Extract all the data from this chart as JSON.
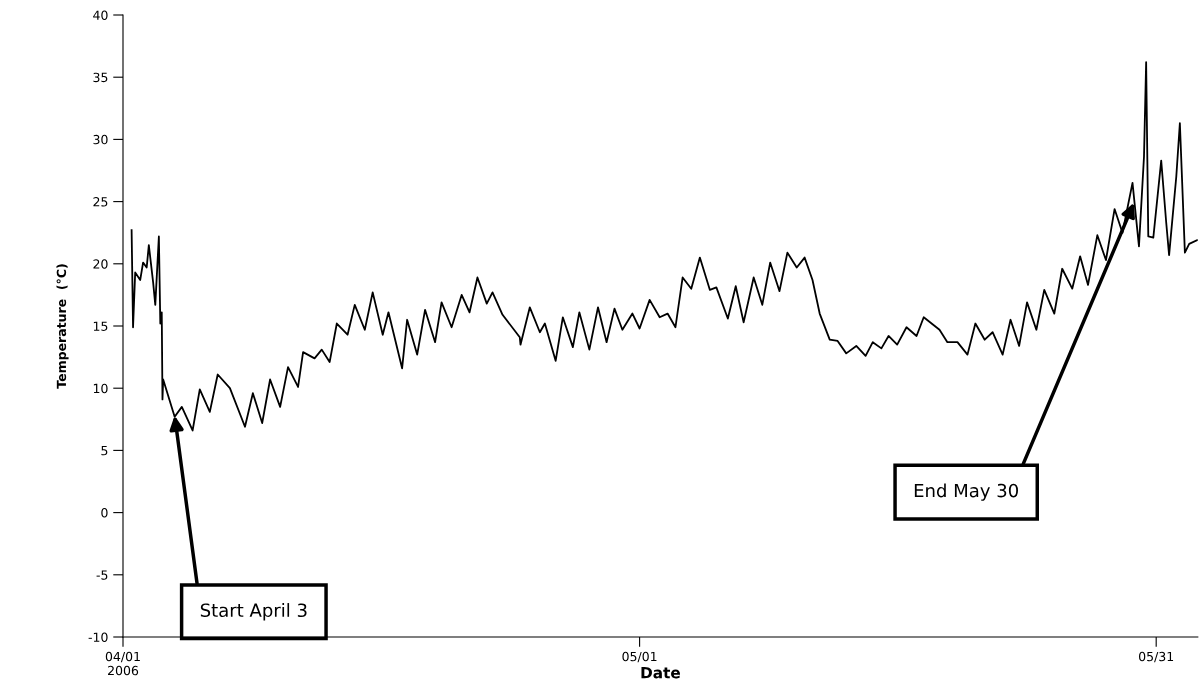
{
  "chart_data": {
    "type": "line",
    "xlabel": "Date",
    "ylabel": "Temperature  (°C)",
    "xlim": [
      "2006-04-01T00:00",
      "2006-06-02T10:00"
    ],
    "xticks": [
      {
        "value": "2006-04-01",
        "label": "04/01\n2006"
      },
      {
        "value": "2006-05-01",
        "label": "05/01"
      },
      {
        "value": "2006-05-31",
        "label": "05/31"
      }
    ],
    "ylim": [
      -10,
      40
    ],
    "yticks": [
      -10,
      -5,
      0,
      5,
      10,
      15,
      20,
      25,
      30,
      35,
      40
    ],
    "grid": false,
    "legend": false,
    "marker": "none",
    "line_style": "solid",
    "annotations": [
      {
        "text": "Start April 3",
        "x": "2006-04-04T00:00",
        "y": 7.8
      },
      {
        "text": "End May 30",
        "x": "2006-05-29T17:00",
        "y": 24.9
      }
    ],
    "series": [
      {
        "color": "#000000",
        "x": [
          "2006-04-01T12:00",
          "2006-04-01T14:00",
          "2006-04-01T17:00",
          "2006-04-02T00:00",
          "2006-04-02T04:00",
          "2006-04-02T09:00",
          "2006-04-02T12:00",
          "2006-04-02T18:00",
          "2006-04-02T21:00",
          "2006-04-03T02:00",
          "2006-04-03T04:00",
          "2006-04-03T06:00",
          "2006-04-03T07:00",
          "2006-04-03T08:00",
          "2006-04-04T00:00",
          "2006-04-04T10:00",
          "2006-04-05T01:00",
          "2006-04-05T11:00",
          "2006-04-06T01:00",
          "2006-04-06T12:00",
          "2006-04-07T05:00",
          "2006-04-08T02:00",
          "2006-04-08T13:00",
          "2006-04-09T02:00",
          "2006-04-09T13:00",
          "2006-04-10T03:00",
          "2006-04-10T14:00",
          "2006-04-11T04:00",
          "2006-04-11T11:00",
          "2006-04-12T03:00",
          "2006-04-12T13:00",
          "2006-04-13T00:00",
          "2006-04-13T10:00",
          "2006-04-14T01:00",
          "2006-04-14T11:00",
          "2006-04-15T01:00",
          "2006-04-15T12:00",
          "2006-04-16T02:00",
          "2006-04-16T10:00",
          "2006-04-17T05:00",
          "2006-04-17T12:00",
          "2006-04-18T02:00",
          "2006-04-18T13:00",
          "2006-04-19T03:00",
          "2006-04-19T12:00",
          "2006-04-20T02:00",
          "2006-04-20T16:00",
          "2006-04-21T03:00",
          "2006-04-21T14:00",
          "2006-04-22T03:00",
          "2006-04-22T11:00",
          "2006-04-23T01:00",
          "2006-04-24T01:00",
          "2006-04-24T02:00",
          "2006-04-24T15:00",
          "2006-04-25T05:00",
          "2006-04-25T12:00",
          "2006-04-26T03:00",
          "2006-04-26T13:00",
          "2006-04-27T03:00",
          "2006-04-27T12:00",
          "2006-04-28T02:00",
          "2006-04-28T14:00",
          "2006-04-29T02:00",
          "2006-04-29T13:00",
          "2006-04-30T00:00",
          "2006-04-30T14:00",
          "2006-05-01T00:00",
          "2006-05-01T14:00",
          "2006-05-02T04:00",
          "2006-05-02T15:00",
          "2006-05-03T02:00",
          "2006-05-03T12:00",
          "2006-05-04T00:00",
          "2006-05-04T12:00",
          "2006-05-05T02:00",
          "2006-05-05T11:00",
          "2006-05-06T03:00",
          "2006-05-06T14:00",
          "2006-05-07T01:00",
          "2006-05-07T15:00",
          "2006-05-08T03:00",
          "2006-05-08T14:00",
          "2006-05-09T03:00",
          "2006-05-09T14:00",
          "2006-05-10T03:00",
          "2006-05-10T14:00",
          "2006-05-11T01:00",
          "2006-05-11T11:00",
          "2006-05-12T01:00",
          "2006-05-12T12:00",
          "2006-05-13T00:00",
          "2006-05-13T14:00",
          "2006-05-14T03:00",
          "2006-05-14T13:00",
          "2006-05-15T01:00",
          "2006-05-15T11:00",
          "2006-05-15T23:00",
          "2006-05-16T12:00",
          "2006-05-17T02:00",
          "2006-05-17T12:00",
          "2006-05-18T10:00",
          "2006-05-18T21:00",
          "2006-05-19T11:00",
          "2006-05-20T01:00",
          "2006-05-20T12:00",
          "2006-05-21T01:00",
          "2006-05-21T12:00",
          "2006-05-22T02:00",
          "2006-05-22T13:00",
          "2006-05-23T01:00",
          "2006-05-23T12:00",
          "2006-05-24T01:00",
          "2006-05-24T12:00",
          "2006-05-25T02:00",
          "2006-05-25T13:00",
          "2006-05-26T03:00",
          "2006-05-26T14:00",
          "2006-05-27T01:00",
          "2006-05-27T14:00",
          "2006-05-28T02:00",
          "2006-05-28T14:00",
          "2006-05-29T01:00",
          "2006-05-29T15:00",
          "2006-05-30T00:00",
          "2006-05-30T07:00",
          "2006-05-30T10:00",
          "2006-05-30T13:00",
          "2006-05-30T20:00",
          "2006-05-31T07:00",
          "2006-05-31T14:00",
          "2006-05-31T18:00",
          "2006-06-01T04:00",
          "2006-06-01T09:00",
          "2006-06-01T16:00",
          "2006-06-01T22:00",
          "2006-06-02T09:00"
        ],
        "values": [
          22.7,
          14.9,
          19.3,
          18.7,
          20.1,
          19.7,
          21.5,
          18.5,
          16.7,
          22.2,
          15.2,
          16.1,
          9.1,
          10.7,
          7.7,
          8.5,
          6.6,
          9.9,
          8.1,
          11.1,
          10.0,
          6.9,
          9.6,
          7.2,
          10.7,
          8.5,
          11.7,
          10.1,
          12.9,
          12.4,
          13.1,
          12.1,
          15.2,
          14.3,
          16.7,
          14.7,
          17.7,
          14.3,
          16.1,
          11.6,
          15.5,
          12.7,
          16.3,
          13.7,
          16.9,
          14.9,
          17.5,
          16.1,
          18.9,
          16.8,
          17.7,
          15.9,
          14.1,
          13.5,
          16.5,
          14.5,
          15.2,
          12.2,
          15.7,
          13.3,
          16.1,
          13.1,
          16.5,
          13.7,
          16.4,
          14.7,
          16.0,
          14.8,
          17.1,
          15.7,
          16.0,
          14.9,
          18.9,
          18.0,
          20.5,
          17.9,
          18.1,
          15.6,
          18.2,
          15.3,
          18.9,
          16.7,
          20.1,
          17.8,
          20.9,
          19.7,
          20.5,
          18.7,
          16.0,
          13.9,
          13.8,
          12.8,
          13.4,
          12.6,
          13.7,
          13.2,
          14.2,
          13.5,
          14.9,
          14.2,
          15.7,
          14.7,
          13.7,
          13.7,
          12.7,
          15.2,
          13.9,
          14.5,
          12.7,
          15.5,
          13.4,
          16.9,
          14.7,
          17.9,
          16.0,
          19.6,
          18.0,
          20.6,
          18.3,
          22.3,
          20.3,
          24.4,
          22.5,
          26.5,
          21.4,
          28.6,
          36.2,
          22.2,
          22.1,
          28.3,
          23.3,
          20.7,
          27.0,
          31.3,
          20.9,
          21.6,
          21.9
        ]
      }
    ]
  }
}
